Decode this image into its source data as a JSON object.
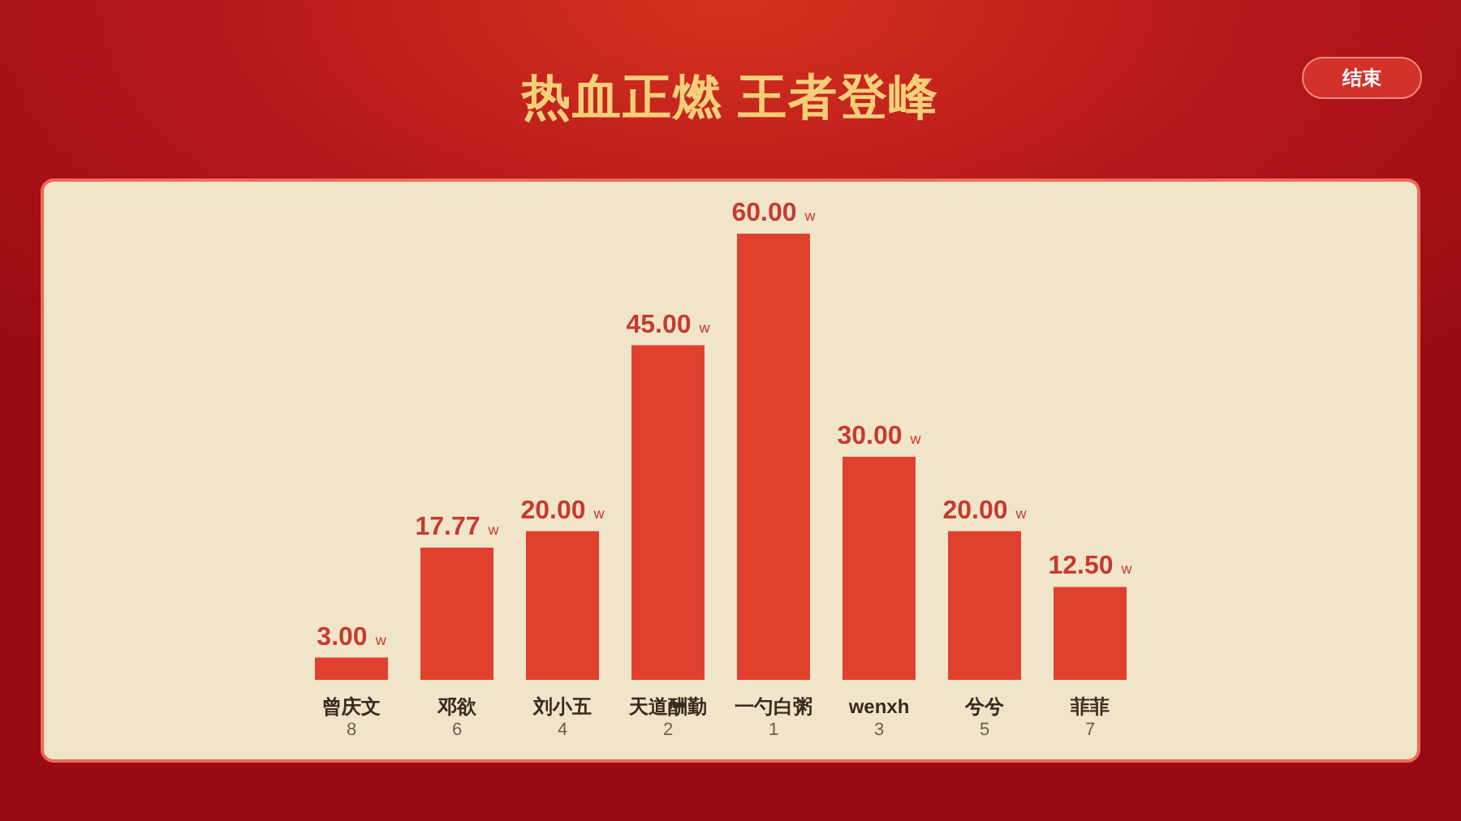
{
  "chart_data": {
    "type": "bar",
    "title": "热血正燃 王者登峰",
    "categories": [
      "曾庆文\n8",
      "邓欲\n6",
      "刘小五\n4",
      "天道酬勤\n2",
      "一勺白粥\n1",
      "wenxh\n3",
      "兮兮\n5",
      "菲菲\n7"
    ],
    "values": [
      3,
      17.77,
      20,
      45,
      60,
      30,
      20,
      12.5
    ],
    "value_labels": [
      "3.00 w",
      "17.77 w",
      "20.00 w",
      "45.00 w",
      "60.00 w",
      "30.00 w",
      "20.00 w",
      "12.50 w"
    ],
    "color": "#e0412e",
    "tick_labels": "x",
    "annotations": [
      "结束"
    ]
  }
}
